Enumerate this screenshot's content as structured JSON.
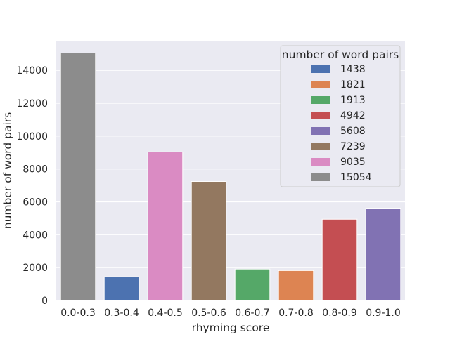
{
  "chart_data": {
    "type": "bar",
    "xlabel": "rhyming score",
    "ylabel": "number of word pairs",
    "ylim": [
      0,
      15800
    ],
    "yticks": [
      0,
      2000,
      4000,
      6000,
      8000,
      10000,
      12000,
      14000
    ],
    "grid": true,
    "categories": [
      "0.0-0.3",
      "0.3-0.4",
      "0.4-0.5",
      "0.5-0.6",
      "0.6-0.7",
      "0.7-0.8",
      "0.8-0.9",
      "0.9-1.0"
    ],
    "values": [
      15054,
      1438,
      9035,
      7239,
      1913,
      1821,
      4942,
      5608
    ],
    "colors": [
      "#8c8c8c",
      "#4c72b0",
      "#da8bc3",
      "#937860",
      "#55a868",
      "#dd8452",
      "#c44e52",
      "#8172b3"
    ],
    "legend": {
      "title": "number of word pairs",
      "position": "top-right",
      "entries": [
        {
          "label": "1438",
          "color": "#4c72b0"
        },
        {
          "label": "1821",
          "color": "#dd8452"
        },
        {
          "label": "1913",
          "color": "#55a868"
        },
        {
          "label": "4942",
          "color": "#c44e52"
        },
        {
          "label": "5608",
          "color": "#8172b3"
        },
        {
          "label": "7239",
          "color": "#937860"
        },
        {
          "label": "9035",
          "color": "#da8bc3"
        },
        {
          "label": "15054",
          "color": "#8c8c8c"
        }
      ]
    }
  }
}
